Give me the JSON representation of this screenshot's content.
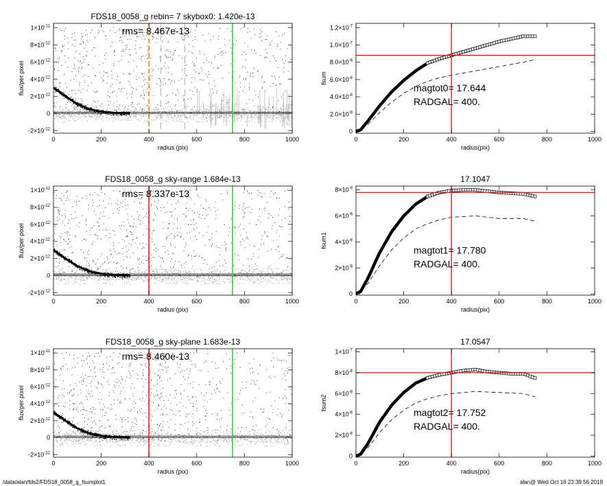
{
  "footer": {
    "path": "/data/alan/fds2/FDS18_0058_g_fsumplot1",
    "stamp": "alan@  Wed Oct 16 23:39:56 2019"
  },
  "colors": {
    "frame": "#000000",
    "scatter_dark": "#000000",
    "scatter_light": "#999999",
    "red": "#e02020",
    "green": "#33cc33",
    "orange": "#f08a00",
    "gray_dash": "#aaaaaa"
  },
  "chart_data": [
    {
      "id": "flux-0",
      "type": "scatter",
      "title": "FDS18_0058_g rebin= 7    skybox0:  1.420e-13",
      "annotation": "rms= 8.467e-13",
      "xlabel": "radius (pix)",
      "ylabel": "flux/per pixel",
      "xlim": [
        0,
        1000
      ],
      "ylim": [
        -2.3e-12,
        1.05e-11
      ],
      "x_ticks": [
        "0",
        "200",
        "400",
        "600",
        "800",
        "1000"
      ],
      "y_ticks": [
        {
          "v": 1e-11,
          "m": "1×10",
          "e": "-11"
        },
        {
          "v": 8e-12,
          "m": "8×10",
          "e": "-12"
        },
        {
          "v": 6e-12,
          "m": "6×10",
          "e": "-12"
        },
        {
          "v": 4e-12,
          "m": "4×10",
          "e": "-12"
        },
        {
          "v": 2e-12,
          "m": "2×10",
          "e": "-12"
        },
        {
          "v": 0,
          "m": "0",
          "e": ""
        },
        {
          "v": -2e-12,
          "m": "-2×10",
          "e": "-12"
        }
      ],
      "profile": [
        [
          0,
          3e-12
        ],
        [
          50,
          2e-12
        ],
        [
          100,
          1.1e-12
        ],
        [
          150,
          5e-13
        ],
        [
          200,
          2e-13
        ],
        [
          260,
          5e-14
        ],
        [
          320,
          0
        ]
      ],
      "sky_lines": [
        1.5e-13,
        0
      ],
      "vlines": [
        {
          "x": 400,
          "color": "#f08a00",
          "style": "dash"
        },
        {
          "x": 450,
          "color": "#aaaaaa",
          "style": "dash"
        },
        {
          "x": 550,
          "color": "#aaaaaa",
          "style": "dash"
        },
        {
          "x": 750,
          "color": "#33cc33",
          "style": "solid"
        }
      ],
      "bad_band": [
        600,
        1000
      ]
    },
    {
      "id": "fsum-0",
      "type": "line",
      "title": "",
      "xlabel": "radius(pix)",
      "ylabel": "fsum",
      "xlim": [
        0,
        1000
      ],
      "ylim": [
        -2e-09,
        1.25e-07
      ],
      "x_ticks": [
        "0",
        "200",
        "400",
        "600",
        "800",
        "1000"
      ],
      "y_ticks": [
        {
          "v": 1.2e-07,
          "m": "1.2×10",
          "e": "-7"
        },
        {
          "v": 1e-07,
          "m": "1.0×10",
          "e": "-7"
        },
        {
          "v": 8e-08,
          "m": "8.0×10",
          "e": "-8"
        },
        {
          "v": 6e-08,
          "m": "6.0×10",
          "e": "-8"
        },
        {
          "v": 4e-08,
          "m": "4.0×10",
          "e": "-8"
        },
        {
          "v": 2e-08,
          "m": "2.0×10",
          "e": "-8"
        },
        {
          "v": 0,
          "m": "0",
          "e": ""
        }
      ],
      "curve": [
        [
          0,
          0
        ],
        [
          20,
          2e-09
        ],
        [
          50,
          1.2e-08
        ],
        [
          100,
          3e-08
        ],
        [
          150,
          4.6e-08
        ],
        [
          200,
          5.9e-08
        ],
        [
          250,
          7e-08
        ],
        [
          300,
          7.9e-08
        ],
        [
          350,
          8.4e-08
        ],
        [
          400,
          8.8e-08
        ],
        [
          450,
          9.2e-08
        ],
        [
          500,
          9.6e-08
        ],
        [
          550,
          1e-07
        ],
        [
          600,
          1.04e-07
        ],
        [
          650,
          1.07e-07
        ],
        [
          700,
          1.1e-07
        ],
        [
          750,
          1.1e-07
        ]
      ],
      "dashed": [
        [
          0,
          0
        ],
        [
          50,
          8e-09
        ],
        [
          100,
          2.2e-08
        ],
        [
          150,
          3.4e-08
        ],
        [
          200,
          4.4e-08
        ],
        [
          250,
          5.2e-08
        ],
        [
          300,
          5.8e-08
        ],
        [
          350,
          6.2e-08
        ],
        [
          400,
          6.5e-08
        ],
        [
          500,
          7e-08
        ],
        [
          600,
          7.5e-08
        ],
        [
          700,
          8e-08
        ],
        [
          750,
          8.3e-08
        ]
      ],
      "hline": 8.8e-08,
      "vline": 400,
      "label1": "magtot0=  17.644",
      "label2": "RADGAL=    400."
    },
    {
      "id": "flux-1",
      "type": "scatter",
      "title": "FDS18_0058_g sky-range  1.684e-13",
      "annotation": "rms= 8.337e-13",
      "xlabel": "radius (pix)",
      "ylabel": "flux/per pixel",
      "xlim": [
        0,
        1000
      ],
      "ylim": [
        -2.3e-12,
        1.05e-11
      ],
      "x_ticks": [
        "0",
        "200",
        "400",
        "600",
        "800",
        "1000"
      ],
      "y_ticks": [
        {
          "v": 1e-11,
          "m": "1×10",
          "e": "-11"
        },
        {
          "v": 8e-12,
          "m": "8×10",
          "e": "-12"
        },
        {
          "v": 6e-12,
          "m": "6×10",
          "e": "-12"
        },
        {
          "v": 4e-12,
          "m": "4×10",
          "e": "-12"
        },
        {
          "v": 2e-12,
          "m": "2×10",
          "e": "-12"
        },
        {
          "v": 0,
          "m": "0",
          "e": ""
        },
        {
          "v": -2e-12,
          "m": "-2×10",
          "e": "-12"
        }
      ],
      "profile": [
        [
          0,
          3e-12
        ],
        [
          50,
          2e-12
        ],
        [
          100,
          1.1e-12
        ],
        [
          150,
          5e-13
        ],
        [
          200,
          2e-13
        ],
        [
          260,
          5e-14
        ],
        [
          320,
          0
        ]
      ],
      "sky_lines": [
        1.7e-13,
        0
      ],
      "vlines": [
        {
          "x": 400,
          "color": "#e02020",
          "style": "solid"
        },
        {
          "x": 750,
          "color": "#33cc33",
          "style": "solid"
        }
      ],
      "bad_band": null
    },
    {
      "id": "fsum-1",
      "type": "line",
      "title": "17.1047",
      "xlabel": "radius(pix)",
      "ylabel": "fsum1",
      "xlim": [
        0,
        1000
      ],
      "ylim": [
        -1e-09,
        8.3e-08
      ],
      "x_ticks": [
        "0",
        "200",
        "400",
        "600",
        "800",
        "1000"
      ],
      "y_ticks": [
        {
          "v": 8e-08,
          "m": "8×10",
          "e": "-8"
        },
        {
          "v": 6e-08,
          "m": "6×10",
          "e": "-8"
        },
        {
          "v": 4e-08,
          "m": "4×10",
          "e": "-8"
        },
        {
          "v": 2e-08,
          "m": "2×10",
          "e": "-8"
        },
        {
          "v": 0,
          "m": "0",
          "e": ""
        }
      ],
      "curve": [
        [
          0,
          0
        ],
        [
          20,
          2e-09
        ],
        [
          50,
          1.2e-08
        ],
        [
          100,
          3.2e-08
        ],
        [
          150,
          4.8e-08
        ],
        [
          200,
          6e-08
        ],
        [
          250,
          6.9e-08
        ],
        [
          300,
          7.5e-08
        ],
        [
          350,
          7.8e-08
        ],
        [
          400,
          7.95e-08
        ],
        [
          450,
          8e-08
        ],
        [
          500,
          8e-08
        ],
        [
          550,
          7.9e-08
        ],
        [
          600,
          7.8e-08
        ],
        [
          650,
          7.75e-08
        ],
        [
          700,
          7.7e-08
        ],
        [
          750,
          7.5e-08
        ]
      ],
      "dashed": [
        [
          0,
          0
        ],
        [
          50,
          8e-09
        ],
        [
          100,
          2.2e-08
        ],
        [
          150,
          3.4e-08
        ],
        [
          200,
          4.3e-08
        ],
        [
          250,
          5e-08
        ],
        [
          300,
          5.4e-08
        ],
        [
          350,
          5.7e-08
        ],
        [
          400,
          5.9e-08
        ],
        [
          500,
          6e-08
        ],
        [
          600,
          5.8e-08
        ],
        [
          700,
          5.8e-08
        ],
        [
          750,
          5.6e-08
        ]
      ],
      "hline": 7.8e-08,
      "vline": 400,
      "label1": "magtot1=  17.780",
      "label2": "RADGAL=    400."
    },
    {
      "id": "flux-2",
      "type": "scatter",
      "title": "FDS18_0058_g sky-plane  1.683e-13",
      "annotation": "rms= 8.460e-13",
      "xlabel": "radius (pix)",
      "ylabel": "flux/per pixel",
      "xlim": [
        0,
        1000
      ],
      "ylim": [
        -2.3e-12,
        1.05e-11
      ],
      "x_ticks": [
        "0",
        "200",
        "400",
        "600",
        "800",
        "1000"
      ],
      "y_ticks": [
        {
          "v": 1e-11,
          "m": "1×10",
          "e": "-11"
        },
        {
          "v": 8e-12,
          "m": "8×10",
          "e": "-12"
        },
        {
          "v": 6e-12,
          "m": "6×10",
          "e": "-12"
        },
        {
          "v": 4e-12,
          "m": "4×10",
          "e": "-12"
        },
        {
          "v": 2e-12,
          "m": "2×10",
          "e": "-12"
        },
        {
          "v": 0,
          "m": "0",
          "e": ""
        },
        {
          "v": -2e-12,
          "m": "-2×10",
          "e": "-12"
        }
      ],
      "profile": [
        [
          0,
          3e-12
        ],
        [
          50,
          2e-12
        ],
        [
          100,
          1.1e-12
        ],
        [
          150,
          5e-13
        ],
        [
          200,
          2e-13
        ],
        [
          260,
          5e-14
        ],
        [
          320,
          0
        ]
      ],
      "sky_lines": [
        1.7e-13,
        0
      ],
      "vlines": [
        {
          "x": 400,
          "color": "#e02020",
          "style": "solid"
        },
        {
          "x": 750,
          "color": "#33cc33",
          "style": "solid"
        }
      ],
      "bad_band": null
    },
    {
      "id": "fsum-2",
      "type": "line",
      "title": "17.0547",
      "xlabel": "radius(pix)",
      "ylabel": "fsum2",
      "xlim": [
        0,
        1000
      ],
      "ylim": [
        -1e-09,
        1.03e-07
      ],
      "x_ticks": [
        "0",
        "200",
        "400",
        "600",
        "800",
        "1000"
      ],
      "y_ticks": [
        {
          "v": 1e-07,
          "m": "1×10",
          "e": "-7"
        },
        {
          "v": 8e-08,
          "m": "8×10",
          "e": "-8"
        },
        {
          "v": 6e-08,
          "m": "6×10",
          "e": "-8"
        },
        {
          "v": 4e-08,
          "m": "4×10",
          "e": "-8"
        },
        {
          "v": 2e-08,
          "m": "2×10",
          "e": "-8"
        },
        {
          "v": 0,
          "m": "0",
          "e": ""
        }
      ],
      "curve": [
        [
          0,
          0
        ],
        [
          20,
          2e-09
        ],
        [
          50,
          1.2e-08
        ],
        [
          100,
          3.3e-08
        ],
        [
          150,
          4.9e-08
        ],
        [
          200,
          6.1e-08
        ],
        [
          250,
          7e-08
        ],
        [
          300,
          7.5e-08
        ],
        [
          350,
          7.8e-08
        ],
        [
          400,
          8e-08
        ],
        [
          450,
          8.2e-08
        ],
        [
          500,
          8.3e-08
        ],
        [
          550,
          8.1e-08
        ],
        [
          600,
          8e-08
        ],
        [
          650,
          7.9e-08
        ],
        [
          700,
          7.9e-08
        ],
        [
          750,
          7.5e-08
        ]
      ],
      "dashed": [
        [
          0,
          0
        ],
        [
          50,
          8e-09
        ],
        [
          100,
          2.3e-08
        ],
        [
          150,
          3.5e-08
        ],
        [
          200,
          4.4e-08
        ],
        [
          250,
          5.1e-08
        ],
        [
          300,
          5.5e-08
        ],
        [
          350,
          5.8e-08
        ],
        [
          400,
          6e-08
        ],
        [
          500,
          6.2e-08
        ],
        [
          600,
          6.1e-08
        ],
        [
          700,
          6e-08
        ],
        [
          750,
          5.7e-08
        ]
      ],
      "hline": 8e-08,
      "vline": 400,
      "label1": "magtot2=  17.752",
      "label2": "RADGAL=    400."
    }
  ]
}
